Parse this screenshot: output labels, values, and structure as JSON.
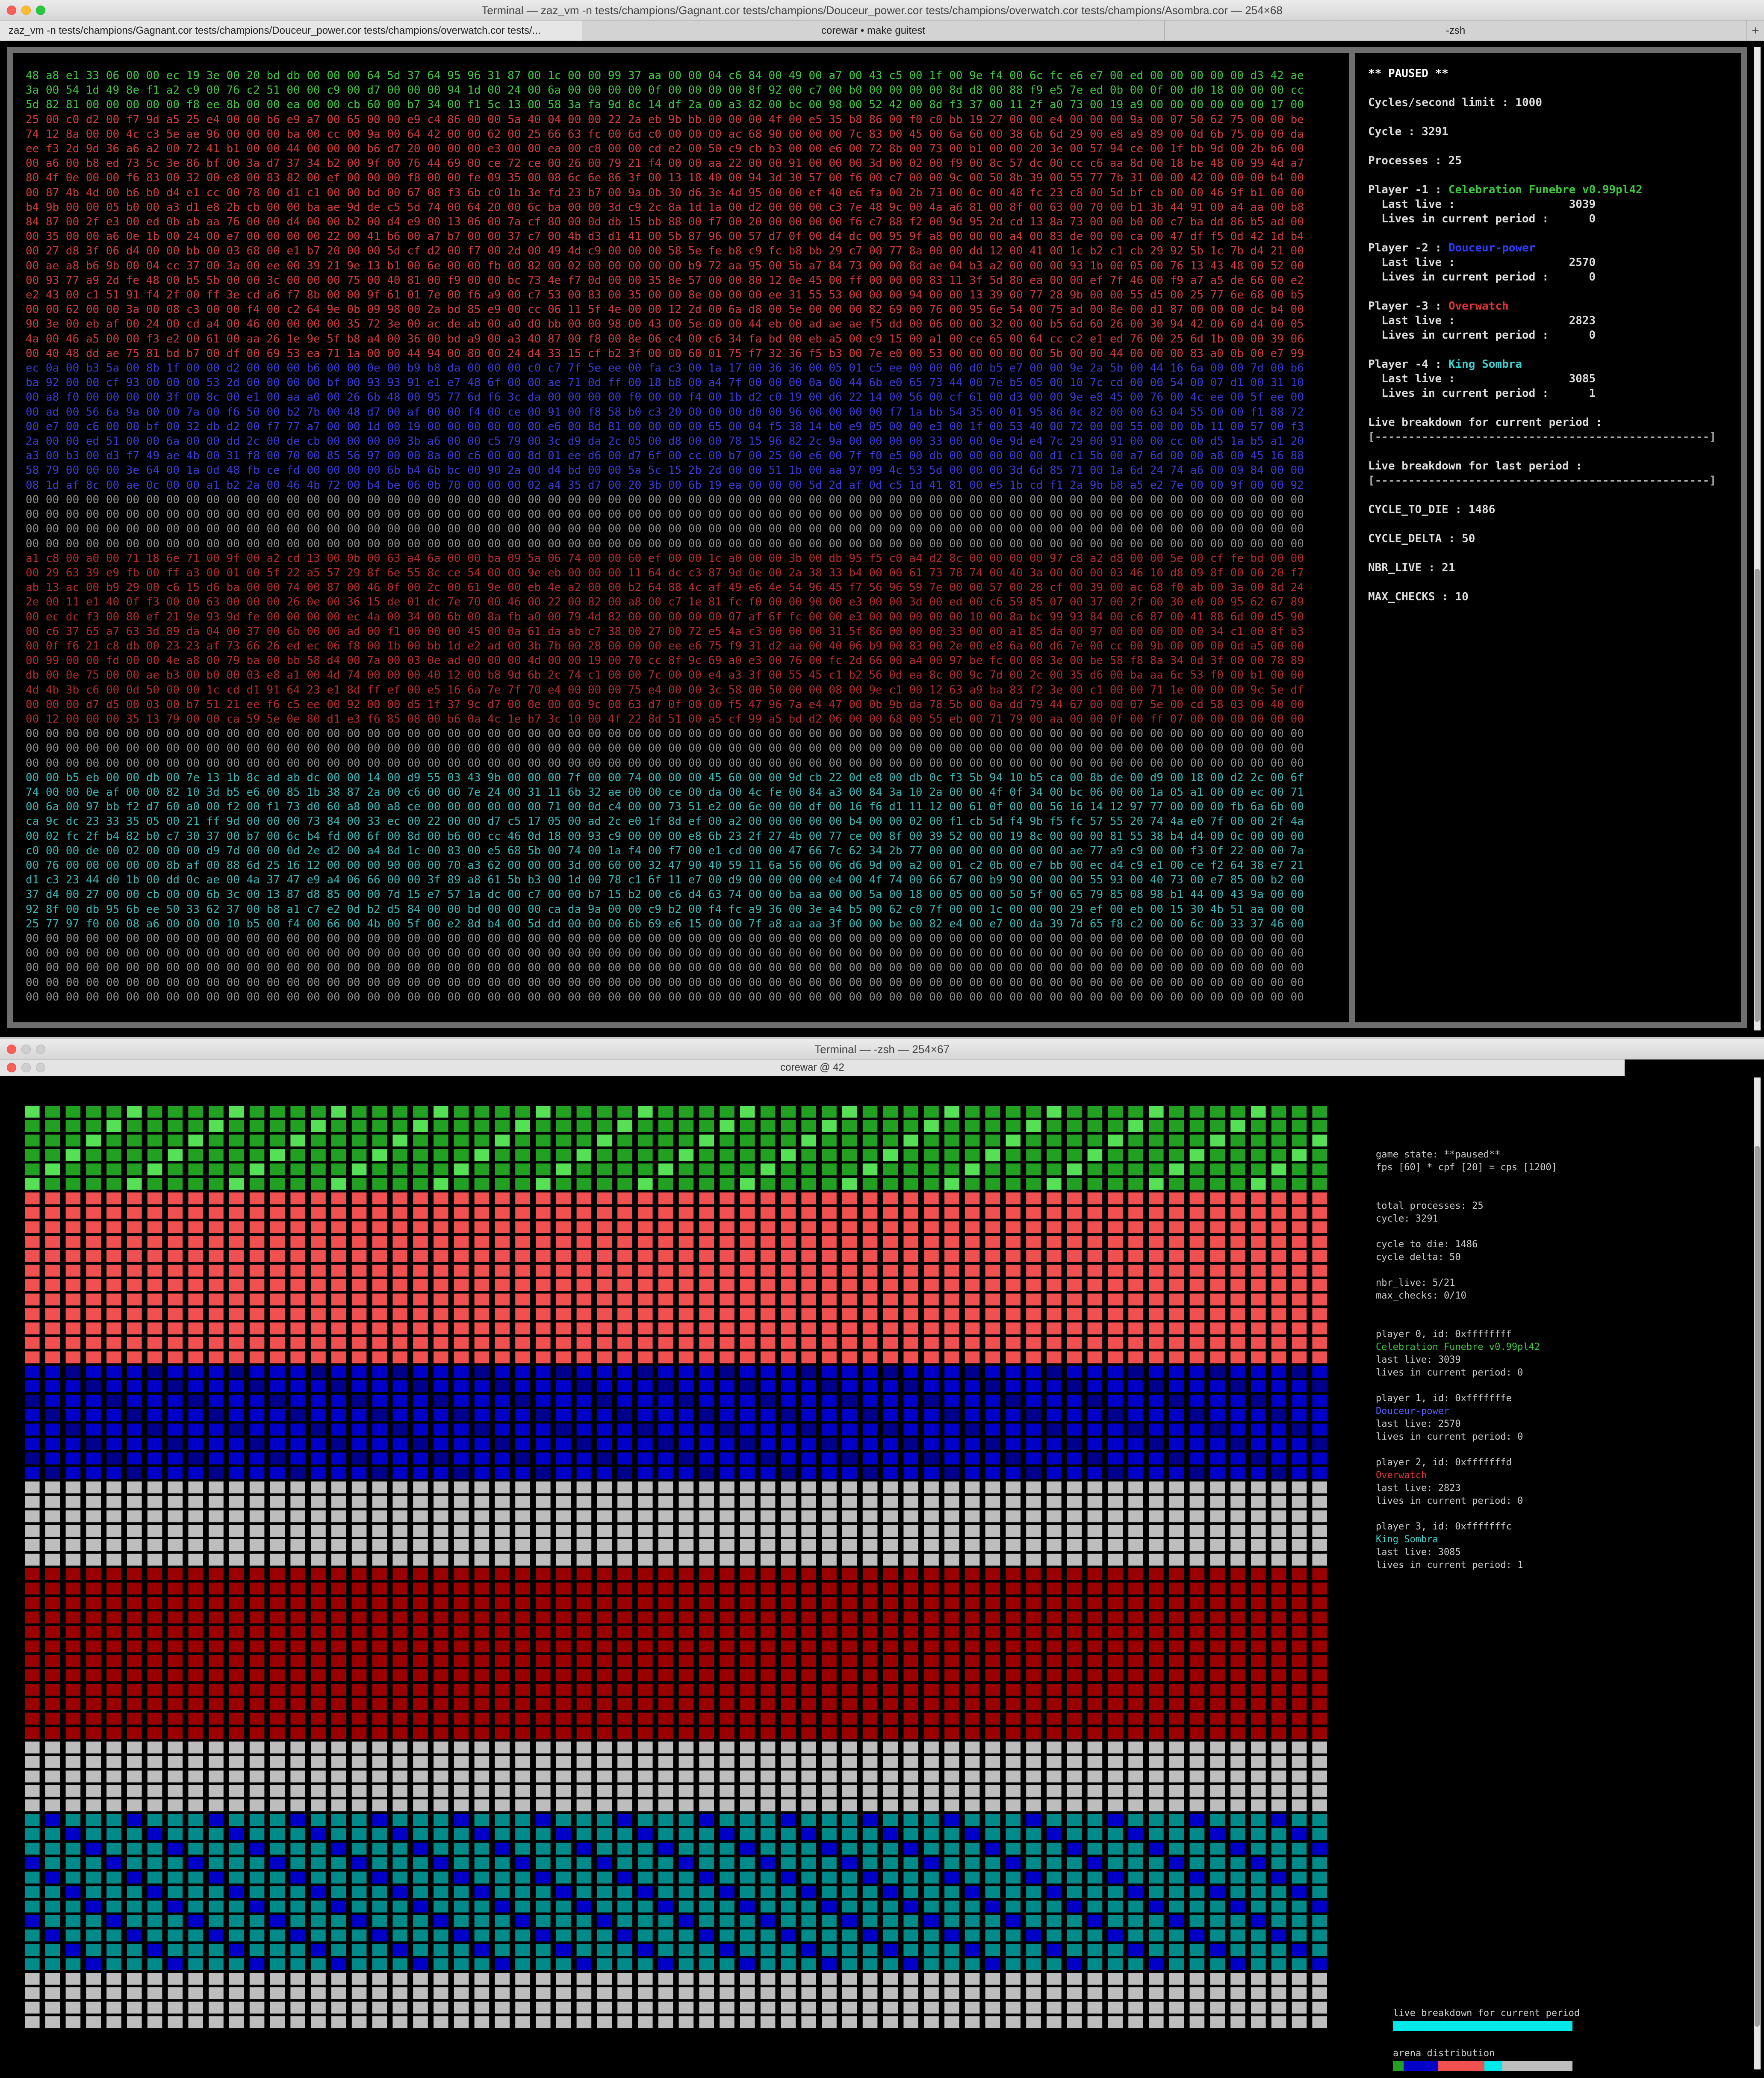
{
  "window1": {
    "title": "Terminal — zaz_vm -n tests/champions/Gagnant.cor tests/champions/Douceur_power.cor tests/champions/overwatch.cor tests/champions/Asombra.cor — 254×68",
    "tabs": [
      "zaz_vm -n tests/champions/Gagnant.cor tests/champions/Douceur_power.cor tests/champions/overwatch.cor tests/...",
      "corewar • make guitest",
      "-zsh"
    ]
  },
  "panel": {
    "status": "** PAUSED **",
    "cycles_limit": "Cycles/second limit : 1000",
    "cycle": "Cycle : 3291",
    "processes": "Processes : 25",
    "players": [
      {
        "label": "Player -1 : ",
        "name": "Celebration Funebre v0.99pl42",
        "color": "#3cc83c",
        "last_live": "  Last live :                 3039",
        "lives": "  Lives in current period :      0"
      },
      {
        "label": "Player -2 : ",
        "name": "Douceur-power",
        "color": "#2a3cff",
        "last_live": "  Last live :                 2570",
        "lives": "  Lives in current period :      0"
      },
      {
        "label": "Player -3 : ",
        "name": "Overwatch",
        "color": "#e03232",
        "last_live": "  Last live :                 2823",
        "lives": "  Lives in current period :      0"
      },
      {
        "label": "Player -4 : ",
        "name": "King Sombra",
        "color": "#3ad0d0",
        "last_live": "  Last live :                 3085",
        "lives": "  Lives in current period :      1"
      }
    ],
    "live_current_label": "Live breakdown for current period :",
    "live_current_bar": "[--------------------------------------------------]",
    "live_last_label": "Live breakdown for last period :",
    "live_last_bar": "[--------------------------------------------------]",
    "cycle_to_die": "CYCLE_TO_DIE : 1486",
    "cycle_delta": "CYCLE_DELTA : 50",
    "nbr_live": "NBR_LIVE : 21",
    "max_checks": "MAX_CHECKS : 10"
  },
  "window2": {
    "title": "Terminal — -zsh — 254×67",
    "vis_title": "corewar @ 42"
  },
  "info": {
    "game_state": "game state: **paused**",
    "fps": "fps [60] * cpf [20] = cps [1200]",
    "total_processes": "total processes: 25",
    "cycle": "cycle: 3291",
    "cycle_to_die": "cycle to die: 1486",
    "cycle_delta": "cycle delta: 50",
    "nbr_live": "nbr_live: 5/21",
    "max_checks": "max_checks: 0/10",
    "players": [
      {
        "id": "player 0, id: 0xffffffff",
        "name": "Celebration Funebre v0.99pl42",
        "color": "#3cc83c",
        "last_live": "last live: 3039",
        "lives": "lives in current period: 0"
      },
      {
        "id": "player 1, id: 0xfffffffe",
        "name": "Douceur-power",
        "color": "#5a5aff",
        "last_live": "last live: 2570",
        "lives": "lives in current period: 0"
      },
      {
        "id": "player 2, id: 0xfffffffd",
        "name": "Overwatch",
        "color": "#e03232",
        "last_live": "last live: 2823",
        "lives": "lives in current period: 0"
      },
      {
        "id": "player 3, id: 0xfffffffc",
        "name": "King Sombra",
        "color": "#3ad0d0",
        "last_live": "last live: 3085",
        "lives": "lives in current period: 1"
      }
    ],
    "live_breakdown_label": "live breakdown for current period",
    "arena_distribution_label": "arena distribution"
  },
  "colors": {
    "green": "#22a022",
    "light_green": "#55e055",
    "light_red": "#f05050",
    "dark_red": "#9a0000",
    "red": "#ff1a1a",
    "blue": "#0000c8",
    "dark_blue": "#00008c",
    "mid_blue": "#4a4af0",
    "cyan": "#00e8e8",
    "teal": "#008a8a",
    "empty": "#bdbdbd"
  },
  "grid": {
    "cols": 64,
    "rows": 64,
    "regions": [
      {
        "from": 0,
        "to": 5,
        "color": "green"
      },
      {
        "from": 6,
        "to": 17,
        "color": "light_red"
      },
      {
        "from": 18,
        "to": 25,
        "color": "blue"
      },
      {
        "from": 26,
        "to": 31,
        "color": "empty"
      },
      {
        "from": 32,
        "to": 43,
        "color": "dark_red"
      },
      {
        "from": 44,
        "to": 48,
        "color": "empty"
      },
      {
        "from": 49,
        "to": 59,
        "color": "teal"
      },
      {
        "from": 60,
        "to": 63,
        "color": "empty"
      }
    ],
    "arena_distribution": [
      {
        "color": "green",
        "fraction": 0.06
      },
      {
        "color": "blue",
        "fraction": 0.19
      },
      {
        "color": "light_red",
        "fraction": 0.26
      },
      {
        "color": "cyan",
        "fraction": 0.1
      },
      {
        "color": "empty",
        "fraction": 0.39
      }
    ],
    "live_breakdown": [
      {
        "color": "cyan",
        "fraction": 1.0
      }
    ]
  }
}
